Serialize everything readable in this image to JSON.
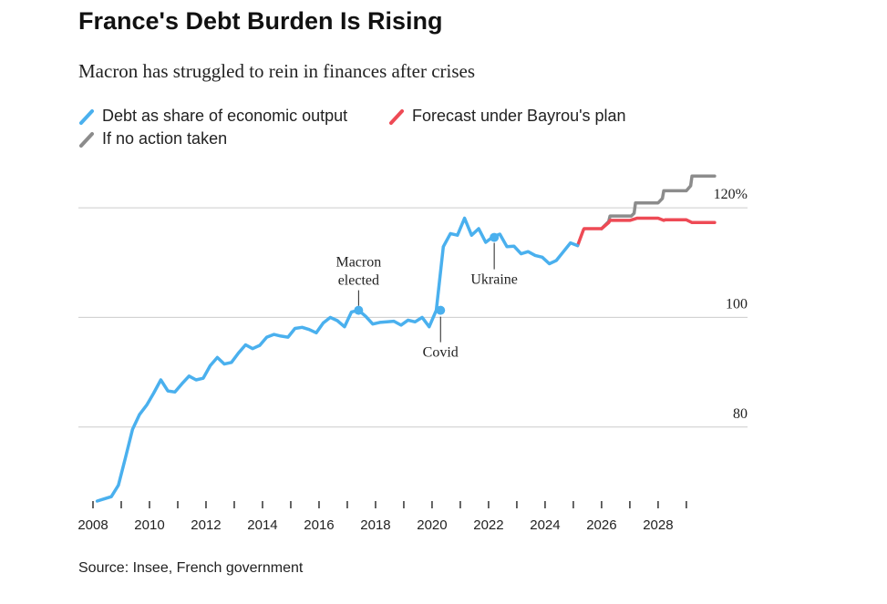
{
  "chart_data": {
    "type": "line",
    "title": "France's Debt Burden Is Rising",
    "subtitle": "Macron has struggled to rein in finances after crises",
    "source": "Source: Insee, French government",
    "colors": {
      "debt": "#4ab0ee",
      "forecast": "#ee4a55",
      "no_action": "#8c8c8c",
      "grid": "#cccccc"
    },
    "xlim": [
      2008,
      2030.1
    ],
    "ylim": [
      66.5,
      126
    ],
    "x_ticks": [
      2008,
      2009,
      2010,
      2011,
      2012,
      2013,
      2014,
      2015,
      2016,
      2017,
      2018,
      2019,
      2020,
      2021,
      2022,
      2023,
      2024,
      2025,
      2026,
      2027,
      2028,
      2029
    ],
    "x_labels": [
      {
        "value": 2008,
        "label": "2008"
      },
      {
        "value": 2010,
        "label": "2010"
      },
      {
        "value": 2012,
        "label": "2012"
      },
      {
        "value": 2014,
        "label": "2014"
      },
      {
        "value": 2016,
        "label": "2016"
      },
      {
        "value": 2018,
        "label": "2018"
      },
      {
        "value": 2020,
        "label": "2020"
      },
      {
        "value": 2022,
        "label": "2022"
      },
      {
        "value": 2024,
        "label": "2024"
      },
      {
        "value": 2026,
        "label": "2026"
      },
      {
        "value": 2028,
        "label": "2028"
      }
    ],
    "y_gridlines": [
      {
        "value": 80,
        "label": "80"
      },
      {
        "value": 100,
        "label": "100"
      },
      {
        "value": 120,
        "label": "120%"
      }
    ],
    "legend": [
      {
        "name": "Debt as share of economic output",
        "color_key": "debt"
      },
      {
        "name": "Forecast under Bayrou's plan",
        "color_key": "forecast"
      },
      {
        "name": "If no action taken",
        "color_key": "no_action"
      }
    ],
    "series": [
      {
        "name": "Debt as share of economic output",
        "color_key": "debt",
        "x": [
          2008.15,
          2008.4,
          2008.65,
          2008.9,
          2009.15,
          2009.4,
          2009.65,
          2009.9,
          2010.15,
          2010.4,
          2010.65,
          2010.9,
          2011.15,
          2011.4,
          2011.65,
          2011.9,
          2012.15,
          2012.4,
          2012.65,
          2012.9,
          2013.15,
          2013.4,
          2013.65,
          2013.9,
          2014.15,
          2014.4,
          2014.65,
          2014.9,
          2015.15,
          2015.4,
          2015.65,
          2015.9,
          2016.15,
          2016.4,
          2016.65,
          2016.9,
          2017.15,
          2017.4,
          2017.65,
          2017.9,
          2018.15,
          2018.4,
          2018.65,
          2018.9,
          2019.15,
          2019.4,
          2019.65,
          2019.9,
          2020.15,
          2020.4,
          2020.65,
          2020.9,
          2021.15,
          2021.4,
          2021.65,
          2021.9,
          2022.15,
          2022.4,
          2022.65,
          2022.9,
          2023.15,
          2023.4,
          2023.65,
          2023.9,
          2024.15,
          2024.4,
          2024.65,
          2024.9,
          2025.15
        ],
        "values": [
          66.5,
          66.9,
          67.3,
          69.4,
          74.4,
          79.6,
          82.3,
          84.0,
          86.2,
          88.6,
          86.6,
          86.4,
          87.9,
          89.3,
          88.6,
          88.9,
          91.2,
          92.7,
          91.5,
          91.8,
          93.5,
          95.0,
          94.3,
          94.9,
          96.4,
          96.9,
          96.6,
          96.4,
          98.0,
          98.2,
          97.8,
          97.2,
          99.0,
          100.0,
          99.4,
          98.3,
          101.0,
          101.3,
          100.2,
          98.8,
          99.1,
          99.2,
          99.3,
          98.6,
          99.5,
          99.2,
          100.0,
          98.3,
          101.3,
          112.9,
          115.3,
          115.0,
          118.1,
          115.0,
          116.2,
          113.7,
          114.7,
          115.2,
          112.9,
          113.0,
          111.6,
          112.0,
          111.3,
          111.0,
          109.8,
          110.4,
          112.0,
          113.6,
          113.1
        ]
      },
      {
        "name": "Forecast under Bayrou's plan",
        "color_key": "forecast",
        "x": [
          2025.15,
          2025.35,
          2025.38,
          2026.0,
          2026.25,
          2026.3,
          2027.0,
          2027.2,
          2027.25,
          2028.0,
          2028.2,
          2028.25,
          2029.0,
          2029.2,
          2029.25,
          2030.0
        ],
        "values": [
          113.1,
          115.9,
          116.2,
          116.2,
          117.3,
          117.7,
          117.7,
          118.0,
          118.1,
          118.1,
          117.7,
          117.8,
          117.8,
          117.3,
          117.3,
          117.3
        ]
      },
      {
        "name": "If no action taken",
        "color_key": "no_action",
        "x": [
          2026.0,
          2026.25,
          2026.3,
          2027.05,
          2027.15,
          2027.2,
          2028.0,
          2028.15,
          2028.2,
          2029.0,
          2029.15,
          2029.2,
          2030.0
        ],
        "values": [
          116.2,
          117.5,
          118.5,
          118.5,
          119.0,
          120.9,
          120.9,
          121.7,
          123.1,
          123.1,
          124.0,
          125.8,
          125.8
        ]
      }
    ],
    "annotations": [
      {
        "label_lines": [
          "Macron",
          "elected"
        ],
        "x": 2017.4,
        "y": 101.3,
        "position": "above",
        "offset": 5
      },
      {
        "label_lines": [
          "Covid"
        ],
        "x": 2020.3,
        "y": 101.3,
        "position": "below",
        "offset": 7
      },
      {
        "label_lines": [
          "Ukraine"
        ],
        "x": 2022.2,
        "y": 114.6,
        "position": "below",
        "offset": 6
      }
    ]
  }
}
